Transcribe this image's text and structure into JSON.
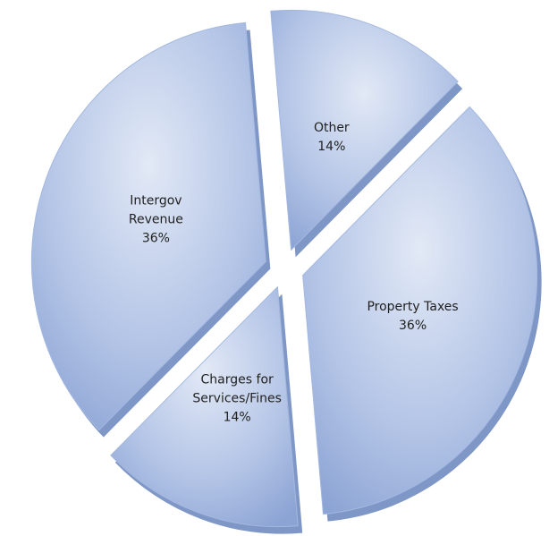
{
  "chart_data": {
    "type": "pie",
    "categories": [
      "Other",
      "Property Taxes",
      "Charges for Services/Fines",
      "Intergov Revenue"
    ],
    "values": [
      14,
      36,
      14,
      36
    ],
    "value_labels": [
      "14%",
      "36%",
      "14%",
      "36%"
    ],
    "color": "#a4b8e0"
  }
}
